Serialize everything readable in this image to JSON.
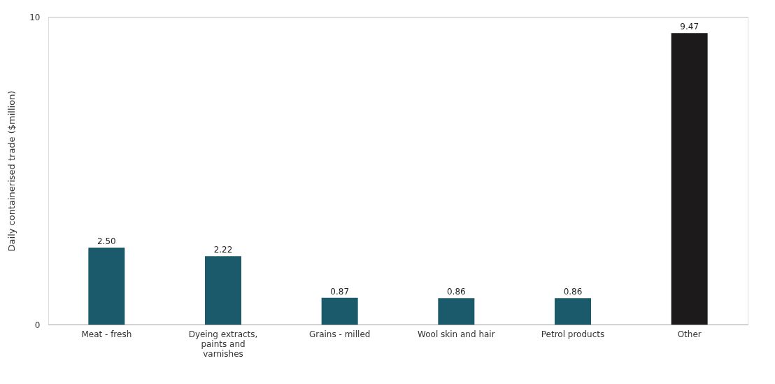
{
  "chart_data": {
    "type": "bar",
    "ylabel": "Daily containerised trade ($million)",
    "categories": [
      "Meat - fresh",
      "Dyeing extracts, paints and varnishes",
      "Grains - milled",
      "Wool skin and hair",
      "Petrol products",
      "Other"
    ],
    "values": [
      2.5,
      2.22,
      0.87,
      0.86,
      0.86,
      9.47
    ],
    "colors": [
      "#1b5a6b",
      "#1b5a6b",
      "#1b5a6b",
      "#1b5a6b",
      "#1b5a6b",
      "#1c1a1a"
    ],
    "value_labels": [
      "2.50",
      "2.22",
      "0.87",
      "0.86",
      "0.86",
      "9.47"
    ],
    "ylim": [
      0,
      10
    ],
    "yticks": [
      0,
      10
    ],
    "grid": "y"
  }
}
